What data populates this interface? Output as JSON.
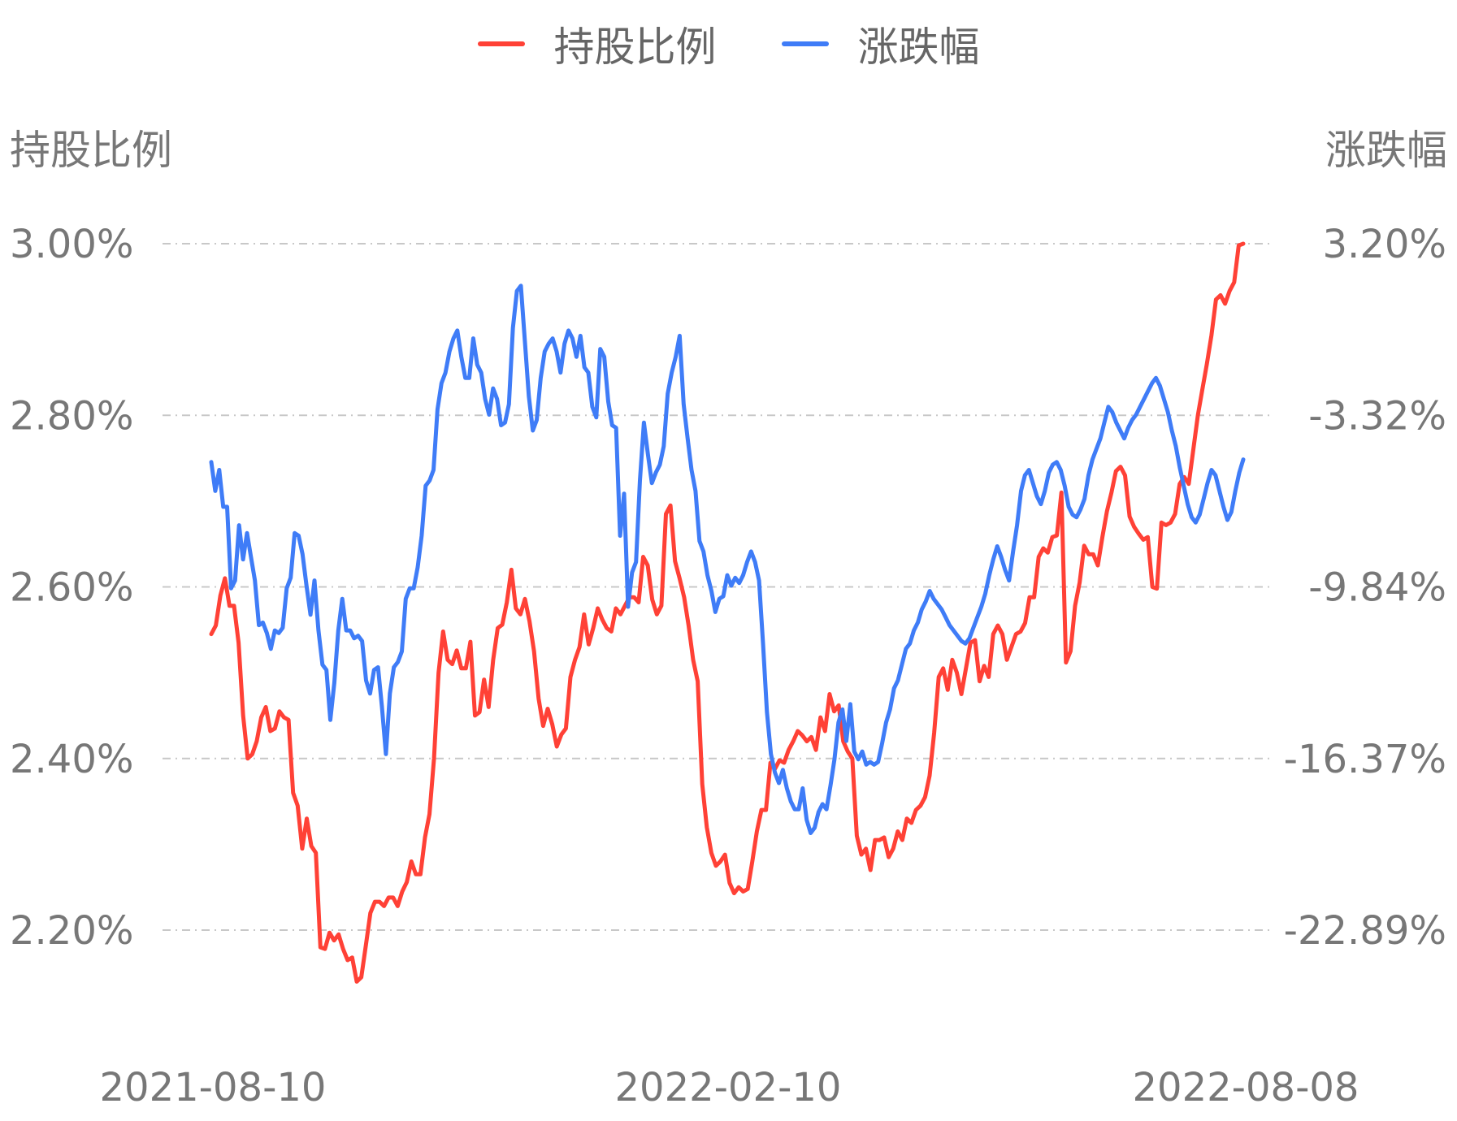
{
  "legend": [
    {
      "name": "持股比例",
      "color": "#ff4136"
    },
    {
      "name": "涨跌幅",
      "color": "#3f7cf7"
    }
  ],
  "chart_data": {
    "type": "line",
    "y_left_title": "持股比例",
    "y_right_title": "涨跌幅",
    "y_left_ticks": [
      "3.00%",
      "2.80%",
      "2.60%",
      "2.40%",
      "2.20%"
    ],
    "y_right_ticks": [
      "3.20%",
      "-3.32%",
      "-9.84%",
      "-16.37%",
      "-22.89%"
    ],
    "y_left_range": [
      2.2,
      3.0
    ],
    "y_right_range": [
      -22.89,
      3.2
    ],
    "x_ticks": [
      "2021-08-10",
      "2022-02-10",
      "2022-08-08"
    ],
    "grid": true,
    "legend_position": "top",
    "series": [
      {
        "name": "持股比例",
        "axis": "left",
        "color": "#ff4136",
        "values": [
          2.545,
          2.555,
          2.59,
          2.61,
          2.578,
          2.578,
          2.535,
          2.45,
          2.4,
          2.405,
          2.42,
          2.448,
          2.46,
          2.432,
          2.435,
          2.455,
          2.448,
          2.445,
          2.36,
          2.345,
          2.295,
          2.33,
          2.298,
          2.29,
          2.18,
          2.178,
          2.197,
          2.188,
          2.195,
          2.178,
          2.165,
          2.168,
          2.14,
          2.145,
          2.182,
          2.22,
          2.233,
          2.233,
          2.228,
          2.238,
          2.238,
          2.228,
          2.245,
          2.256,
          2.28,
          2.265,
          2.265,
          2.308,
          2.335,
          2.4,
          2.5,
          2.548,
          2.515,
          2.51,
          2.526,
          2.505,
          2.505,
          2.536,
          2.45,
          2.454,
          2.492,
          2.46,
          2.515,
          2.552,
          2.556,
          2.582,
          2.62,
          2.575,
          2.568,
          2.586,
          2.56,
          2.525,
          2.47,
          2.438,
          2.458,
          2.44,
          2.414,
          2.428,
          2.435,
          2.495,
          2.515,
          2.53,
          2.568,
          2.533,
          2.552,
          2.575,
          2.562,
          2.552,
          2.548,
          2.575,
          2.568,
          2.578,
          2.588,
          2.588,
          2.582,
          2.635,
          2.625,
          2.585,
          2.568,
          2.578,
          2.685,
          2.695,
          2.63,
          2.61,
          2.588,
          2.555,
          2.515,
          2.49,
          2.37,
          2.32,
          2.29,
          2.275,
          2.28,
          2.288,
          2.255,
          2.243,
          2.25,
          2.245,
          2.248,
          2.28,
          2.315,
          2.34,
          2.34,
          2.395,
          2.388,
          2.398,
          2.395,
          2.41,
          2.42,
          2.432,
          2.427,
          2.42,
          2.425,
          2.41,
          2.448,
          2.432,
          2.475,
          2.455,
          2.462,
          2.42,
          2.408,
          2.4,
          2.31,
          2.288,
          2.295,
          2.27,
          2.305,
          2.305,
          2.308,
          2.285,
          2.295,
          2.315,
          2.305,
          2.33,
          2.325,
          2.34,
          2.345,
          2.355,
          2.38,
          2.43,
          2.495,
          2.505,
          2.48,
          2.515,
          2.5,
          2.475,
          2.505,
          2.535,
          2.538,
          2.49,
          2.508,
          2.495,
          2.545,
          2.555,
          2.545,
          2.515,
          2.53,
          2.545,
          2.548,
          2.558,
          2.588,
          2.588,
          2.635,
          2.645,
          2.64,
          2.658,
          2.66,
          2.71,
          2.512,
          2.525,
          2.578,
          2.605,
          2.648,
          2.638,
          2.638,
          2.625,
          2.658,
          2.688,
          2.71,
          2.735,
          2.74,
          2.73,
          2.682,
          2.67,
          2.662,
          2.655,
          2.658,
          2.6,
          2.598,
          2.675,
          2.672,
          2.675,
          2.685,
          2.72,
          2.728,
          2.72,
          2.76,
          2.8,
          2.83,
          2.86,
          2.893,
          2.935,
          2.94,
          2.93,
          2.945,
          2.955,
          2.998,
          3.0
        ]
      },
      {
        "name": "涨跌幅",
        "axis": "right",
        "color": "#3f7cf7",
        "values": [
          -5.1,
          -6.2,
          -5.4,
          -6.8,
          -6.8,
          -9.9,
          -9.6,
          -7.5,
          -8.8,
          -7.8,
          -8.7,
          -9.6,
          -11.3,
          -11.2,
          -11.6,
          -12.2,
          -11.5,
          -11.6,
          -11.4,
          -9.9,
          -9.5,
          -7.8,
          -7.9,
          -8.6,
          -9.8,
          -10.9,
          -9.6,
          -11.5,
          -12.8,
          -13.0,
          -14.9,
          -13.5,
          -11.5,
          -10.3,
          -11.5,
          -11.5,
          -11.8,
          -11.7,
          -11.9,
          -13.4,
          -13.9,
          -13.0,
          -12.9,
          -14.4,
          -16.2,
          -13.9,
          -12.9,
          -12.7,
          -12.3,
          -10.3,
          -9.9,
          -9.9,
          -9.1,
          -7.9,
          -6.0,
          -5.8,
          -5.4,
          -3.1,
          -2.1,
          -1.7,
          -0.9,
          -0.4,
          -0.1,
          -1.1,
          -1.9,
          -1.9,
          -0.4,
          -1.4,
          -1.7,
          -2.7,
          -3.3,
          -2.3,
          -2.7,
          -3.7,
          -3.6,
          -2.9,
          0.0,
          1.4,
          1.6,
          -0.5,
          -2.6,
          -3.9,
          -3.5,
          -1.9,
          -0.9,
          -0.6,
          -0.4,
          -0.9,
          -1.7,
          -0.6,
          -0.1,
          -0.4,
          -1.1,
          -0.3,
          -1.5,
          -1.7,
          -3.0,
          -3.4,
          -0.8,
          -1.1,
          -2.8,
          -3.7,
          -3.8,
          -7.9,
          -6.3,
          -10.6,
          -9.3,
          -8.9,
          -5.8,
          -3.6,
          -4.8,
          -5.9,
          -5.5,
          -5.2,
          -4.5,
          -2.5,
          -1.7,
          -1.1,
          -0.3,
          -2.9,
          -4.2,
          -5.4,
          -6.2,
          -8.1,
          -8.5,
          -9.4,
          -10.0,
          -10.8,
          -10.3,
          -10.2,
          -9.4,
          -9.8,
          -9.5,
          -9.7,
          -9.4,
          -8.9,
          -8.5,
          -8.9,
          -9.6,
          -12.0,
          -14.6,
          -16.2,
          -16.9,
          -17.3,
          -16.8,
          -17.5,
          -18.0,
          -18.3,
          -18.3,
          -17.5,
          -18.7,
          -19.2,
          -19.0,
          -18.4,
          -18.1,
          -18.3,
          -17.4,
          -16.4,
          -15.0,
          -14.5,
          -15.7,
          -14.3,
          -16.1,
          -16.4,
          -16.1,
          -16.6,
          -16.5,
          -16.6,
          -16.5,
          -15.8,
          -15.0,
          -14.5,
          -13.7,
          -13.4,
          -12.8,
          -12.2,
          -12.0,
          -11.5,
          -11.2,
          -10.7,
          -10.4,
          -10.0,
          -10.3,
          -10.5,
          -10.7,
          -11.0,
          -11.3,
          -11.5,
          -11.7,
          -11.9,
          -12.0,
          -11.8,
          -11.4,
          -11.0,
          -10.6,
          -10.1,
          -9.4,
          -8.8,
          -8.3,
          -8.7,
          -9.2,
          -9.6,
          -8.5,
          -7.5,
          -6.2,
          -5.6,
          -5.4,
          -5.9,
          -6.4,
          -6.7,
          -6.2,
          -5.5,
          -5.2,
          -5.1,
          -5.4,
          -6.0,
          -6.8,
          -7.1,
          -7.2,
          -6.9,
          -6.5,
          -5.6,
          -5.0,
          -4.6,
          -4.2,
          -3.6,
          -3.0,
          -3.2,
          -3.6,
          -3.9,
          -4.2,
          -3.8,
          -3.5,
          -3.3,
          -3.0,
          -2.7,
          -2.4,
          -2.1,
          -1.9,
          -2.2,
          -2.7,
          -3.2,
          -3.9,
          -4.5,
          -5.3,
          -6.0,
          -6.7,
          -7.2,
          -7.4,
          -7.1,
          -6.5,
          -5.9,
          -5.4,
          -5.6,
          -6.2,
          -6.8,
          -7.3,
          -7.0,
          -6.2,
          -5.5,
          -5.0
        ]
      }
    ]
  }
}
